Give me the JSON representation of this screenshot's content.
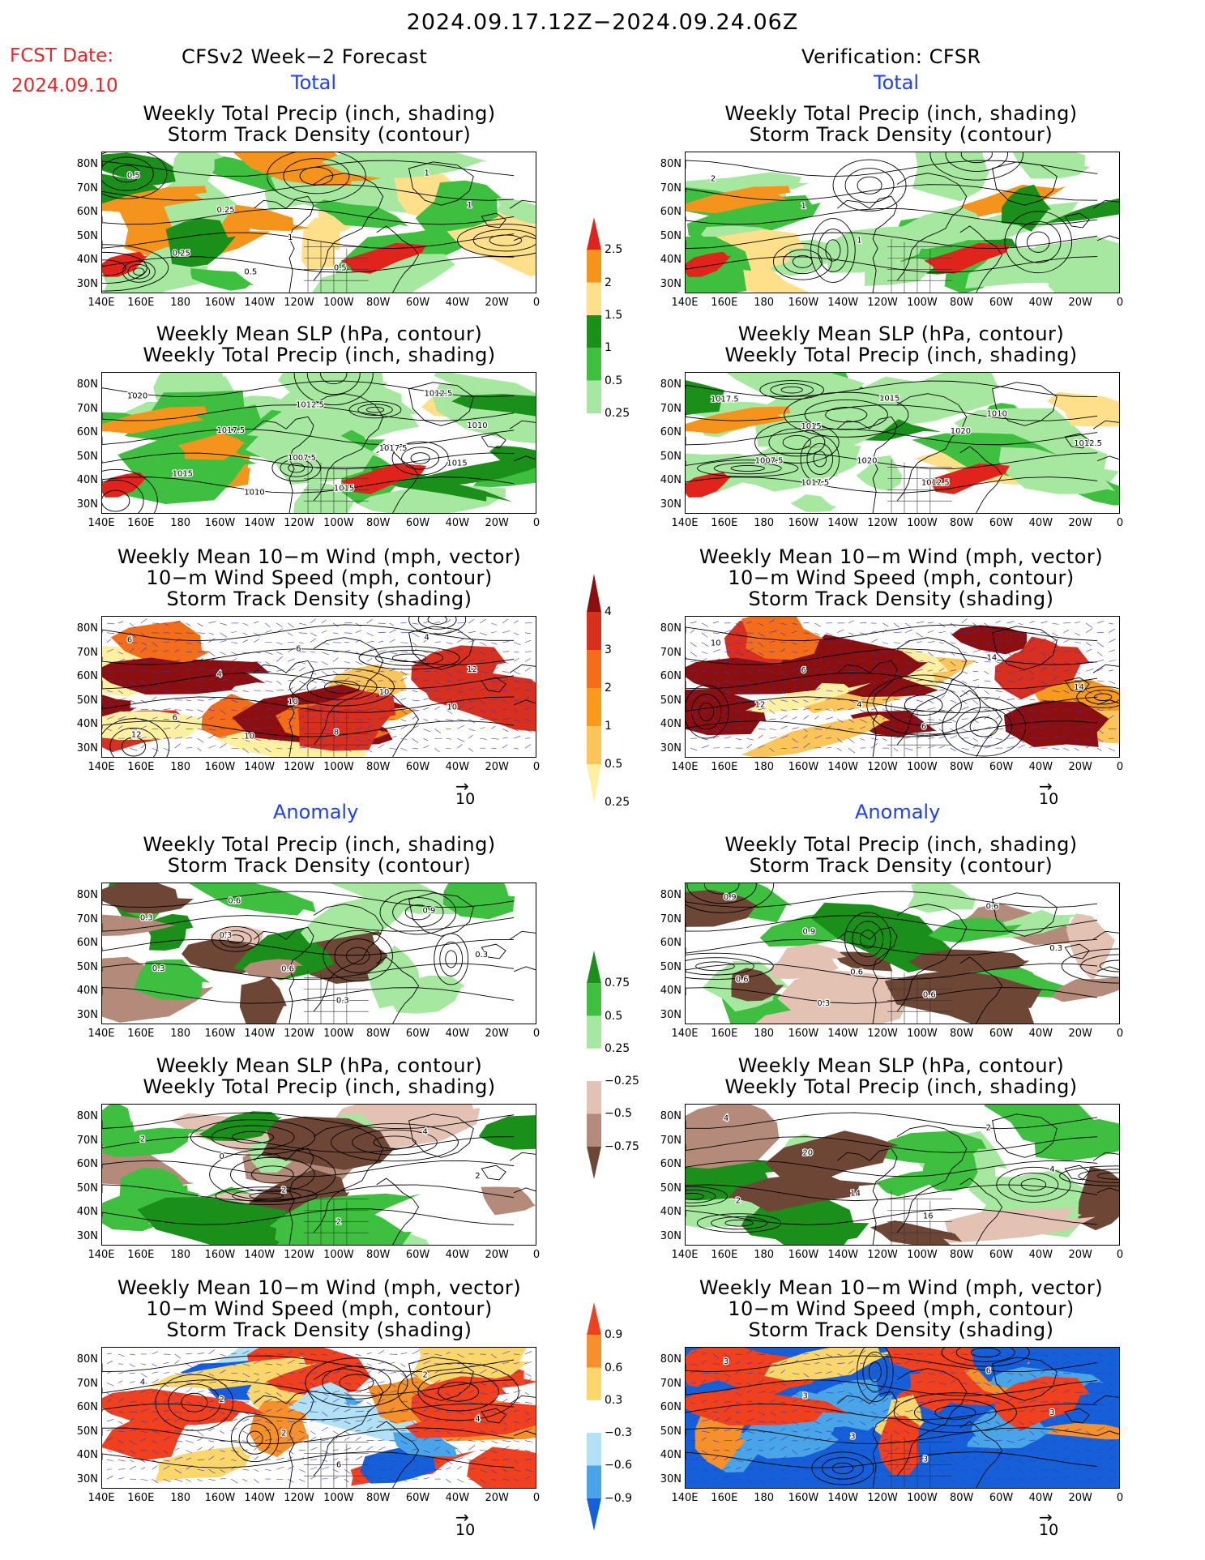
{
  "header": {
    "main_title": "2024.09.17.12Z−2024.09.24.06Z",
    "fcst_label": "FCST Date:",
    "fcst_date": "2024.09.10",
    "left_title": "CFSv2 Week−2 Forecast",
    "right_title": "Verification: CFSR",
    "total_label": "Total",
    "anomaly_label": "Anomaly"
  },
  "titles": {
    "precip_storm": [
      "Weekly Total Precip (inch, shading)",
      "Storm Track Density (contour)"
    ],
    "slp_precip": [
      "Weekly Mean SLP (hPa, contour)",
      "Weekly Total Precip (inch, shading)"
    ],
    "wind": [
      "Weekly Mean 10−m Wind (mph, vector)",
      "10−m Wind Speed (mph, contour)",
      "Storm Track Density (shading)"
    ]
  },
  "axes": {
    "lat_labels": [
      "80N",
      "70N",
      "60N",
      "50N",
      "40N",
      "30N"
    ],
    "lon_labels": [
      "140E",
      "160E",
      "180",
      "160W",
      "140W",
      "120W",
      "100W",
      "80W",
      "60W",
      "40W",
      "20W",
      "0"
    ]
  },
  "colorbars": {
    "precip_total": {
      "labels": [
        "2.5",
        "2",
        "1.5",
        "1",
        "0.5",
        "0.25"
      ],
      "colors": [
        "#e0241c",
        "#f5941d",
        "#fee08a",
        "#1a8f1a",
        "#3fbf3f",
        "#a6e8a0"
      ]
    },
    "storm_total": {
      "labels": [
        "4",
        "3",
        "2",
        "1",
        "0.5",
        "0.25"
      ],
      "colors": [
        "#8b0f0f",
        "#d7301f",
        "#f46d1a",
        "#f99a1c",
        "#fbc55a",
        "#fdf0a0"
      ]
    },
    "precip_anom": {
      "labels": [
        "0.75",
        "0.5",
        "0.25",
        "−0.25",
        "−0.5",
        "−0.75"
      ],
      "colors": [
        "#1a8f1a",
        "#3fbf3f",
        "#a6e8a0",
        "#ffffff",
        "#e3c2b4",
        "#b48a7a",
        "#6e4636"
      ]
    },
    "storm_anom": {
      "labels": [
        "0.9",
        "0.6",
        "0.3",
        "−0.3",
        "−0.6",
        "−0.9"
      ],
      "colors": [
        "#f0401d",
        "#f6902a",
        "#fbd66a",
        "#ffffff",
        "#b2e0f5",
        "#4aa5e8",
        "#1560d8"
      ]
    }
  },
  "vector_ref": "10",
  "contour_labels": {
    "fp1": [
      "0.5",
      "0.25",
      "1",
      "0.5",
      "1",
      "1",
      "0.25",
      "0.5"
    ],
    "vp1": [
      "2",
      "1",
      "1"
    ],
    "fp2": [
      "1020",
      "1017.5",
      "1007.5",
      "1015",
      "1012.5",
      "1010",
      "1015",
      "1010",
      "1012.5",
      "1017.5",
      "1015"
    ],
    "vp2": [
      "1017.5",
      "1015",
      "1020",
      "1012.5",
      "1010",
      "1012.5",
      "1007.5",
      "1017.5",
      "1015",
      "1020"
    ],
    "fp3": [
      "6",
      "4",
      "10",
      "8",
      "4",
      "12",
      "6",
      "10",
      "6",
      "10",
      "10",
      "12"
    ],
    "vp3": [
      "10",
      "6",
      "4",
      "6",
      "14",
      "14",
      "12"
    ],
    "fa1": [
      "0.3",
      "0.3",
      "0.6",
      "0.3",
      "0.9",
      "0.3",
      "0.3",
      "0.6"
    ],
    "va1": [
      "0.9",
      "0.9",
      "0.6",
      "0.6",
      "0.6",
      "0.3",
      "0.6",
      "0.3"
    ],
    "fa2": [
      "2",
      "0",
      "2",
      "2",
      "4",
      "2"
    ],
    "va2": [
      "4",
      "20",
      "14",
      "16",
      "2",
      "4",
      "2"
    ],
    "fa3": [
      "4",
      "2",
      "2",
      "6",
      "2",
      "4"
    ],
    "va3": [
      "3",
      "3",
      "3",
      "3",
      "6",
      "3"
    ]
  }
}
